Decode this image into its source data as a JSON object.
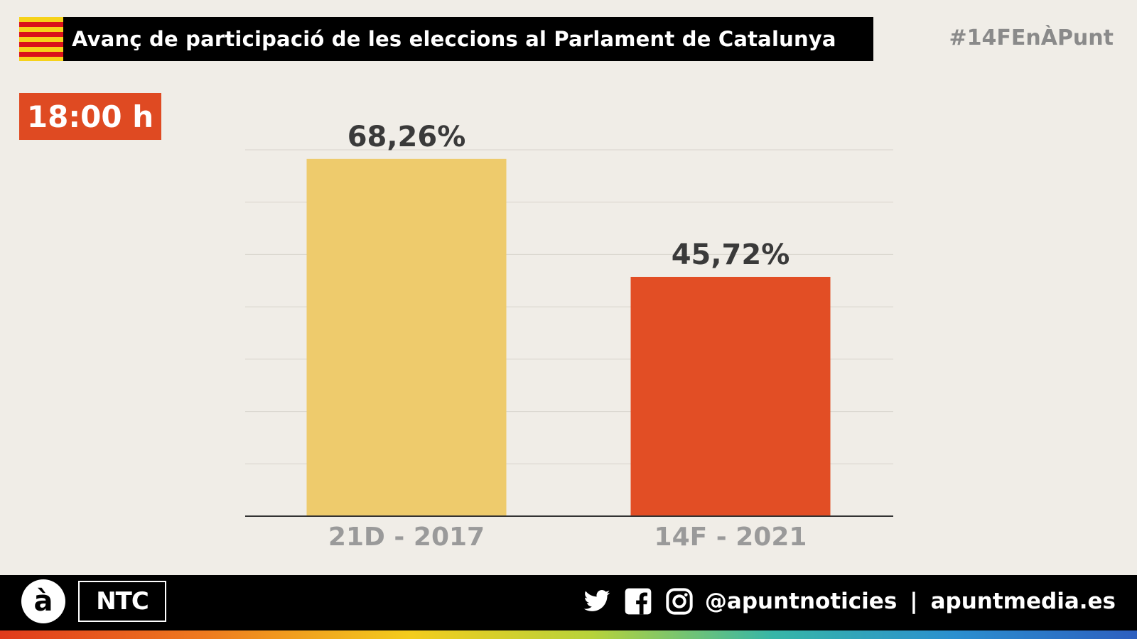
{
  "header": {
    "title": "Avanç de participació de les eleccions al Parlament de Catalunya",
    "hashtag": "#14FEnÀPunt"
  },
  "time_badge": "18:00 h",
  "chart_data": {
    "type": "bar",
    "categories": [
      "21D - 2017",
      "14F - 2021"
    ],
    "values": [
      68.26,
      45.72
    ],
    "value_labels": [
      "68,26%",
      "45,72%"
    ],
    "colors": [
      "#eecb6c",
      "#e24e25"
    ],
    "ylim": [
      0,
      70
    ],
    "gridlines": [
      10,
      20,
      30,
      40,
      50,
      60,
      70
    ],
    "title": "Avanç de participació de les eleccions al Parlament de Catalunya",
    "xlabel": "",
    "ylabel": ""
  },
  "footer": {
    "logo_a": "à",
    "logo_ntc": "NTC",
    "handle": "@apuntnoticies",
    "separator": "|",
    "site": "apuntmedia.es",
    "icons": [
      "twitter-icon",
      "facebook-icon",
      "instagram-icon"
    ]
  },
  "colors": {
    "background": "#f0ede7",
    "accent": "#df4a22",
    "bar_2017": "#eecb6c",
    "bar_2021": "#e24e25"
  }
}
